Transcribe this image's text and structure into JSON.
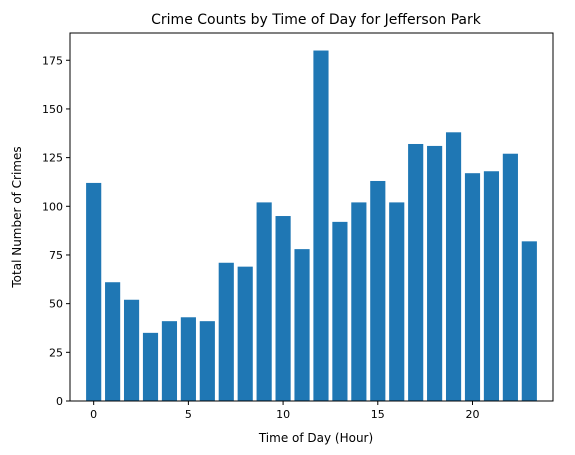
{
  "chart_data": {
    "type": "bar",
    "title": "Crime Counts by Time of Day for Jefferson Park",
    "xlabel": "Time of Day (Hour)",
    "ylabel": "Total Number of Crimes",
    "x": [
      0,
      1,
      2,
      3,
      4,
      5,
      6,
      7,
      8,
      9,
      10,
      11,
      12,
      13,
      14,
      15,
      16,
      17,
      18,
      19,
      20,
      21,
      22,
      23
    ],
    "values": [
      112,
      61,
      52,
      35,
      41,
      43,
      41,
      71,
      69,
      102,
      95,
      78,
      180,
      92,
      102,
      113,
      102,
      132,
      131,
      138,
      117,
      118,
      127,
      82
    ],
    "xlim": [
      -1.25,
      24.25
    ],
    "ylim": [
      0,
      189
    ],
    "xticks": [
      0,
      5,
      10,
      15,
      20
    ],
    "yticks": [
      0,
      25,
      50,
      75,
      100,
      125,
      150,
      175
    ],
    "bar_color": "#1f77b4",
    "grid": false,
    "legend": "none"
  }
}
